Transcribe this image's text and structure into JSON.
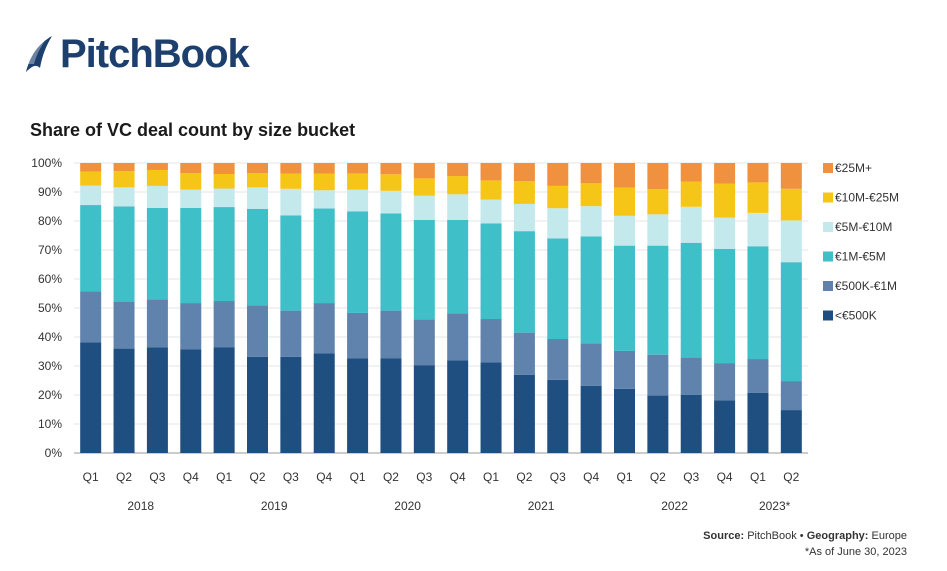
{
  "brand": {
    "name": "PitchBook",
    "color": "#1d3f6e"
  },
  "chart_data": {
    "type": "bar",
    "stacked": true,
    "title": "Share of VC deal count by size bucket",
    "categories": [
      "Q1",
      "Q2",
      "Q3",
      "Q4",
      "Q1",
      "Q2",
      "Q3",
      "Q4",
      "Q1",
      "Q2",
      "Q3",
      "Q4",
      "Q1",
      "Q2",
      "Q3",
      "Q4",
      "Q1",
      "Q2",
      "Q3",
      "Q4",
      "Q1",
      "Q2"
    ],
    "year_groups": [
      {
        "label": "2018",
        "start": 0,
        "end": 3
      },
      {
        "label": "2019",
        "start": 4,
        "end": 7
      },
      {
        "label": "2020",
        "start": 8,
        "end": 11
      },
      {
        "label": "2021",
        "start": 12,
        "end": 15
      },
      {
        "label": "2022",
        "start": 16,
        "end": 19
      },
      {
        "label": "2023*",
        "start": 20,
        "end": 21
      }
    ],
    "y_ticks": [
      "0%",
      "10%",
      "20%",
      "30%",
      "40%",
      "50%",
      "60%",
      "70%",
      "80%",
      "90%",
      "100%"
    ],
    "ylim": [
      0,
      100
    ],
    "grid": true,
    "legend_position": "right",
    "series": [
      {
        "name": "<€500K",
        "color": "#1f4e80",
        "values": [
          38.2,
          36.0,
          36.4,
          35.7,
          36.5,
          33.2,
          33.2,
          34.3,
          32.6,
          32.7,
          30.3,
          32.0,
          31.3,
          27.0,
          25.2,
          23.2,
          22.1,
          19.8,
          20.1,
          18.2,
          20.8,
          14.8
        ]
      },
      {
        "name": "€500K-€1M",
        "color": "#5f83ad",
        "values": [
          17.6,
          16.2,
          16.6,
          16.0,
          15.9,
          17.7,
          15.9,
          17.4,
          15.7,
          16.4,
          15.8,
          16.2,
          14.9,
          14.5,
          14.1,
          14.6,
          13.1,
          14.1,
          12.8,
          12.8,
          11.6,
          10.0
        ]
      },
      {
        "name": "€1M-€5M",
        "color": "#3fbfc8",
        "values": [
          29.7,
          32.8,
          31.5,
          32.8,
          32.4,
          33.3,
          32.8,
          32.6,
          35.0,
          33.5,
          34.3,
          32.2,
          33.0,
          35.0,
          34.7,
          36.9,
          36.3,
          37.6,
          39.6,
          39.4,
          38.9,
          41.0
        ]
      },
      {
        "name": "€5M-€10M",
        "color": "#c3e9ec",
        "values": [
          6.7,
          6.6,
          7.6,
          6.3,
          6.4,
          7.4,
          9.2,
          6.3,
          7.5,
          7.8,
          8.3,
          8.8,
          8.2,
          9.4,
          10.4,
          10.4,
          10.3,
          10.8,
          12.4,
          10.8,
          11.5,
          14.4
        ]
      },
      {
        "name": "€10M-€25M",
        "color": "#f5c518",
        "values": [
          4.8,
          5.6,
          5.5,
          5.7,
          5.0,
          4.9,
          5.2,
          5.7,
          5.6,
          5.7,
          6.0,
          6.3,
          6.6,
          7.8,
          7.7,
          7.9,
          9.7,
          8.7,
          8.7,
          11.7,
          10.5,
          10.9
        ]
      },
      {
        "name": "€25M+",
        "color": "#f0913f",
        "values": [
          3.0,
          2.8,
          2.4,
          3.5,
          3.8,
          3.5,
          3.7,
          3.7,
          3.6,
          3.9,
          5.3,
          4.5,
          6.0,
          6.3,
          7.9,
          7.0,
          8.5,
          9.0,
          6.4,
          7.1,
          6.7,
          8.9
        ]
      }
    ]
  },
  "footer": {
    "source_label": "Source:",
    "source_value": "PitchBook",
    "separator": "•",
    "geo_label": "Geography:",
    "geo_value": "Europe",
    "asof": "*As of June 30, 2023"
  }
}
